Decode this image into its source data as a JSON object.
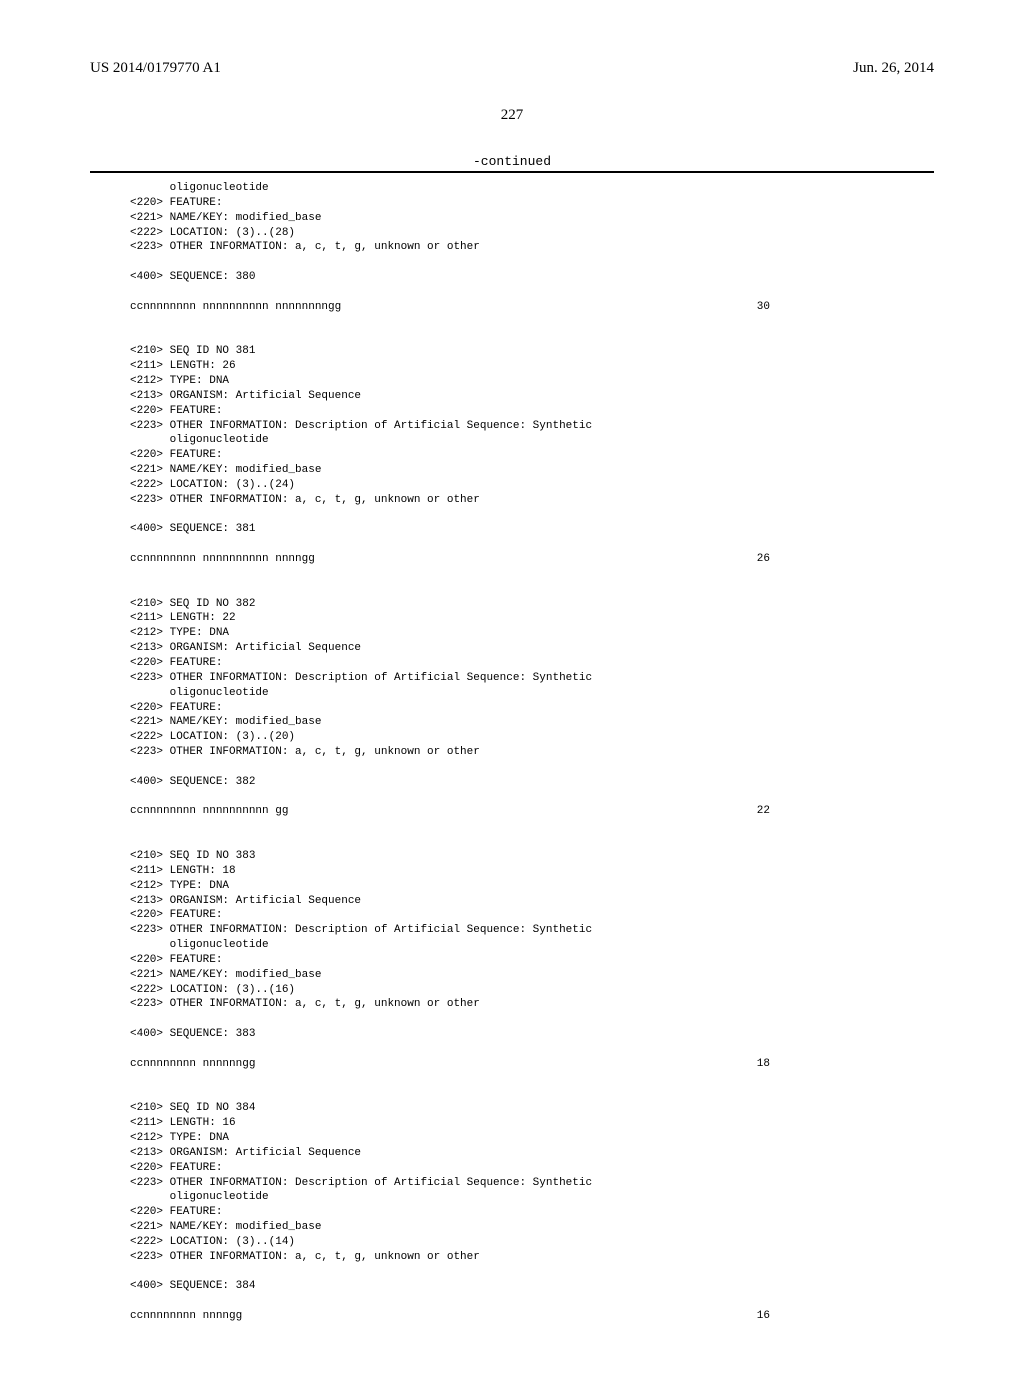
{
  "header": {
    "pub_number": "US 2014/0179770 A1",
    "pub_date": "Jun. 26, 2014",
    "page_number": "227",
    "continued_label": "-continued"
  },
  "intro_lines": [
    "      oligonucleotide",
    "<220> FEATURE:",
    "<221> NAME/KEY: modified_base",
    "<222> LOCATION: (3)..(28)",
    "<223> OTHER INFORMATION: a, c, t, g, unknown or other",
    "",
    "<400> SEQUENCE: 380",
    ""
  ],
  "intro_seq": {
    "sequence": "ccnnnnnnnn nnnnnnnnnn nnnnnnnngg",
    "length": "30"
  },
  "blocks": [
    {
      "id": "381",
      "length_val": "26",
      "location": "(3)..(24)",
      "sequence": "ccnnnnnnnn nnnnnnnnnn nnnngg",
      "seq_len": "26"
    },
    {
      "id": "382",
      "length_val": "22",
      "location": "(3)..(20)",
      "sequence": "ccnnnnnnnn nnnnnnnnnn gg",
      "seq_len": "22"
    },
    {
      "id": "383",
      "length_val": "18",
      "location": "(3)..(16)",
      "sequence": "ccnnnnnnnn nnnnnngg",
      "seq_len": "18"
    },
    {
      "id": "384",
      "length_val": "16",
      "location": "(3)..(14)",
      "sequence": "ccnnnnnnnn nnnngg",
      "seq_len": "16"
    }
  ],
  "labels": {
    "seq_id_no": "<210> SEQ ID NO ",
    "length": "<211> LENGTH: ",
    "type": "<212> TYPE: DNA",
    "organism": "<213> ORGANISM: Artificial Sequence",
    "feature": "<220> FEATURE:",
    "other_info_desc": "<223> OTHER INFORMATION: Description of Artificial Sequence: Synthetic",
    "oligo_indent": "      oligonucleotide",
    "name_key": "<221> NAME/KEY: modified_base",
    "location_prefix": "<222> LOCATION: ",
    "other_info_bases": "<223> OTHER INFORMATION: a, c, t, g, unknown or other",
    "sequence_prefix": "<400> SEQUENCE: "
  }
}
